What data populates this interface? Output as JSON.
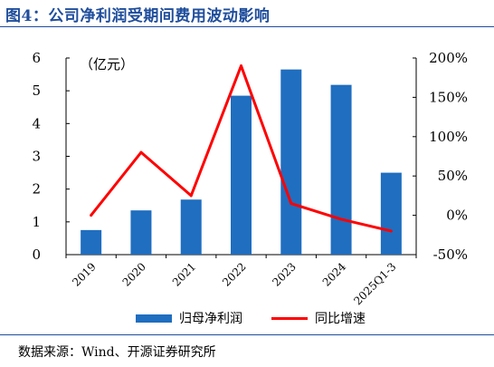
{
  "header": {
    "title": "图4：公司净利润受期间费用波动影响"
  },
  "footer": {
    "source": "数据来源：Wind、开源证券研究所"
  },
  "chart_data": {
    "type": "bar",
    "categories": [
      "2019",
      "2020",
      "2021",
      "2022",
      "2023",
      "2024",
      "2025Q1-3"
    ],
    "series": [
      {
        "name": "归母净利润",
        "type": "bar",
        "axis": "left",
        "values": [
          0.75,
          1.35,
          1.68,
          4.85,
          5.65,
          5.18,
          2.5
        ]
      },
      {
        "name": "同比增速",
        "type": "line",
        "axis": "right",
        "values": [
          0,
          80,
          25,
          190,
          15,
          -5,
          -20
        ]
      }
    ],
    "y_left": {
      "unit_label": "（亿元）",
      "ylim": [
        0,
        6
      ],
      "ticks": [
        "0",
        "1",
        "2",
        "3",
        "4",
        "5",
        "6"
      ]
    },
    "y_right": {
      "ylim": [
        -50,
        200
      ],
      "ticks": [
        "-50%",
        "0%",
        "50%",
        "100%",
        "150%",
        "200%"
      ]
    },
    "colors": {
      "bar": "#1f6ec0",
      "line": "#ff0000",
      "title": "#1f4e9c"
    },
    "legend_position": "bottom",
    "grid": false
  }
}
